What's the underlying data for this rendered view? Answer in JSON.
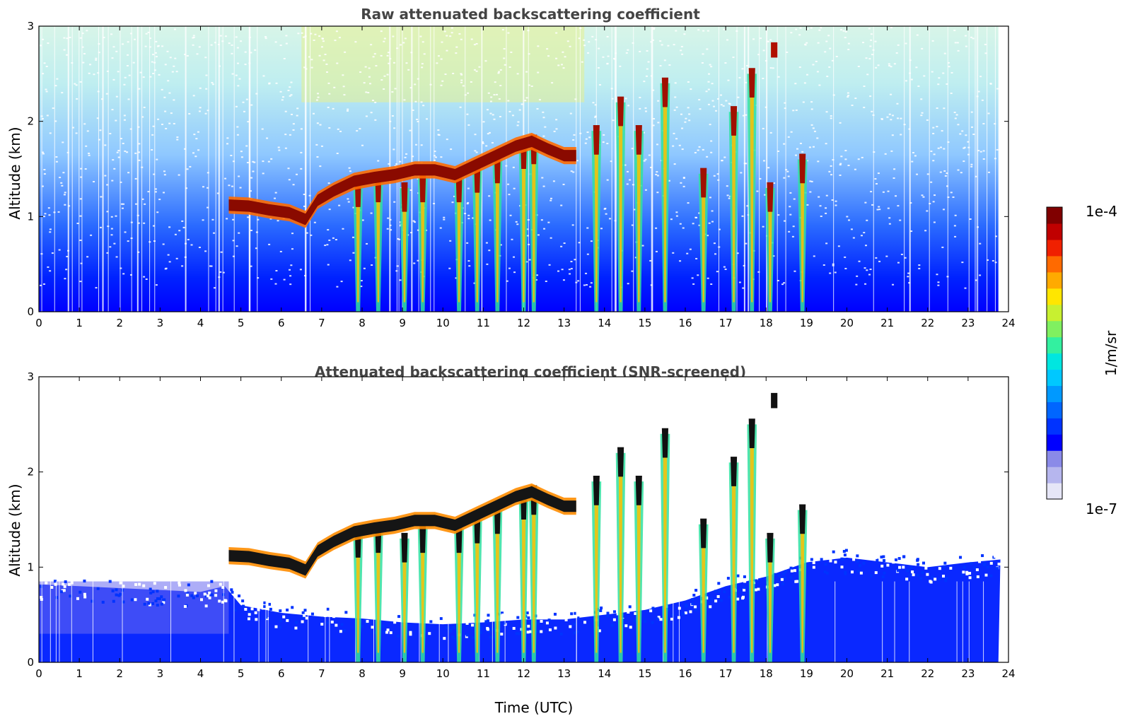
{
  "chart_data": [
    {
      "type": "heatmap",
      "title": "Raw attenuated backscattering coefficient",
      "xlabel": "",
      "ylabel": "Altitude (km)",
      "xlim": [
        0,
        24
      ],
      "ylim": [
        0,
        3
      ],
      "xticks": [
        "0",
        "1",
        "2",
        "3",
        "4",
        "5",
        "6",
        "7",
        "8",
        "9",
        "10",
        "11",
        "12",
        "13",
        "14",
        "15",
        "16",
        "17",
        "18",
        "19",
        "20",
        "21",
        "22",
        "23",
        "24"
      ],
      "yticks": [
        "0",
        "1",
        "2",
        "3"
      ],
      "screened": false,
      "cloud_layer": [
        [
          4.7,
          1.13
        ],
        [
          5.2,
          1.12
        ],
        [
          5.7,
          1.08
        ],
        [
          6.2,
          1.05
        ],
        [
          6.6,
          0.98
        ],
        [
          6.9,
          1.18
        ],
        [
          7.3,
          1.28
        ],
        [
          7.8,
          1.38
        ],
        [
          8.3,
          1.42
        ],
        [
          8.8,
          1.45
        ],
        [
          9.3,
          1.5
        ],
        [
          9.8,
          1.5
        ],
        [
          10.3,
          1.45
        ],
        [
          10.8,
          1.55
        ],
        [
          11.3,
          1.65
        ],
        [
          11.8,
          1.75
        ],
        [
          12.2,
          1.8
        ],
        [
          12.6,
          1.72
        ],
        [
          13.0,
          1.65
        ],
        [
          13.3,
          1.65
        ]
      ],
      "virga_plumes": [
        [
          7.9,
          1.35
        ],
        [
          8.4,
          1.4
        ],
        [
          9.05,
          1.3
        ],
        [
          9.5,
          1.4
        ],
        [
          10.4,
          1.4
        ],
        [
          10.85,
          1.5
        ],
        [
          11.35,
          1.6
        ],
        [
          12.0,
          1.75
        ],
        [
          12.25,
          1.8
        ],
        [
          13.8,
          1.9
        ],
        [
          14.4,
          2.2
        ],
        [
          14.85,
          1.9
        ],
        [
          15.5,
          2.4
        ],
        [
          16.45,
          1.45
        ],
        [
          17.2,
          2.1
        ],
        [
          17.65,
          2.5
        ],
        [
          18.1,
          1.3
        ],
        [
          18.9,
          1.6
        ]
      ],
      "high_clouds": [
        [
          18.2,
          2.75
        ]
      ],
      "colorbar": {
        "min": "1e-7",
        "max": "1e-4",
        "label": "1/m/sr"
      }
    },
    {
      "type": "heatmap",
      "title": "Attenuated backscattering coefficient (SNR-screened)",
      "xlabel": "Time (UTC)",
      "ylabel": "Altitude (km)",
      "xlim": [
        0,
        24
      ],
      "ylim": [
        0,
        3
      ],
      "xticks": [
        "0",
        "1",
        "2",
        "3",
        "4",
        "5",
        "6",
        "7",
        "8",
        "9",
        "10",
        "11",
        "12",
        "13",
        "14",
        "15",
        "16",
        "17",
        "18",
        "19",
        "20",
        "21",
        "22",
        "23",
        "24"
      ],
      "yticks": [
        "0",
        "1",
        "2",
        "3"
      ],
      "screened": true,
      "boundary_layer_top": [
        [
          0,
          0.82
        ],
        [
          1,
          0.8
        ],
        [
          2,
          0.78
        ],
        [
          3,
          0.76
        ],
        [
          4,
          0.74
        ],
        [
          4.6,
          0.8
        ],
        [
          5,
          0.6
        ],
        [
          6,
          0.52
        ],
        [
          7,
          0.48
        ],
        [
          8,
          0.46
        ],
        [
          9,
          0.42
        ],
        [
          10,
          0.4
        ],
        [
          11,
          0.42
        ],
        [
          12,
          0.45
        ],
        [
          13,
          0.45
        ],
        [
          14,
          0.5
        ],
        [
          15,
          0.55
        ],
        [
          16,
          0.65
        ],
        [
          17,
          0.8
        ],
        [
          18,
          0.9
        ],
        [
          19,
          1.05
        ],
        [
          20,
          1.1
        ],
        [
          21,
          1.05
        ],
        [
          22,
          1.0
        ],
        [
          23,
          1.05
        ],
        [
          23.8,
          1.08
        ]
      ],
      "cloud_layer": [
        [
          4.7,
          1.13
        ],
        [
          5.2,
          1.12
        ],
        [
          5.7,
          1.08
        ],
        [
          6.2,
          1.05
        ],
        [
          6.6,
          0.98
        ],
        [
          6.9,
          1.18
        ],
        [
          7.3,
          1.28
        ],
        [
          7.8,
          1.38
        ],
        [
          8.3,
          1.42
        ],
        [
          8.8,
          1.45
        ],
        [
          9.3,
          1.5
        ],
        [
          9.8,
          1.5
        ],
        [
          10.3,
          1.45
        ],
        [
          10.8,
          1.55
        ],
        [
          11.3,
          1.65
        ],
        [
          11.8,
          1.75
        ],
        [
          12.2,
          1.8
        ],
        [
          12.6,
          1.72
        ],
        [
          13.0,
          1.65
        ],
        [
          13.3,
          1.65
        ]
      ],
      "virga_plumes": [
        [
          7.9,
          1.35
        ],
        [
          8.4,
          1.4
        ],
        [
          9.05,
          1.3
        ],
        [
          9.5,
          1.4
        ],
        [
          10.4,
          1.4
        ],
        [
          10.85,
          1.5
        ],
        [
          11.35,
          1.6
        ],
        [
          12.0,
          1.75
        ],
        [
          12.25,
          1.8
        ],
        [
          13.8,
          1.9
        ],
        [
          14.4,
          2.2
        ],
        [
          14.85,
          1.9
        ],
        [
          15.5,
          2.4
        ],
        [
          16.45,
          1.45
        ],
        [
          17.2,
          2.1
        ],
        [
          17.65,
          2.5
        ],
        [
          18.1,
          1.3
        ],
        [
          18.9,
          1.6
        ]
      ],
      "high_clouds": [
        [
          18.2,
          2.75
        ]
      ],
      "colorbar": {
        "min": "1e-7",
        "max": "1e-4",
        "label": "1/m/sr"
      }
    }
  ],
  "colorbar": {
    "max_label": "1e-4",
    "min_label": "1e-7",
    "unit_label": "1/m/sr",
    "colors": [
      "#e6e6f7",
      "#b6b6ee",
      "#8a8ae8",
      "#0000ff",
      "#0033ff",
      "#0066ff",
      "#0099ff",
      "#00c8ff",
      "#00e6e0",
      "#33f0a0",
      "#80f060",
      "#c8f030",
      "#ffe600",
      "#ffaa00",
      "#ff6a00",
      "#f02000",
      "#c00000",
      "#800000"
    ]
  }
}
